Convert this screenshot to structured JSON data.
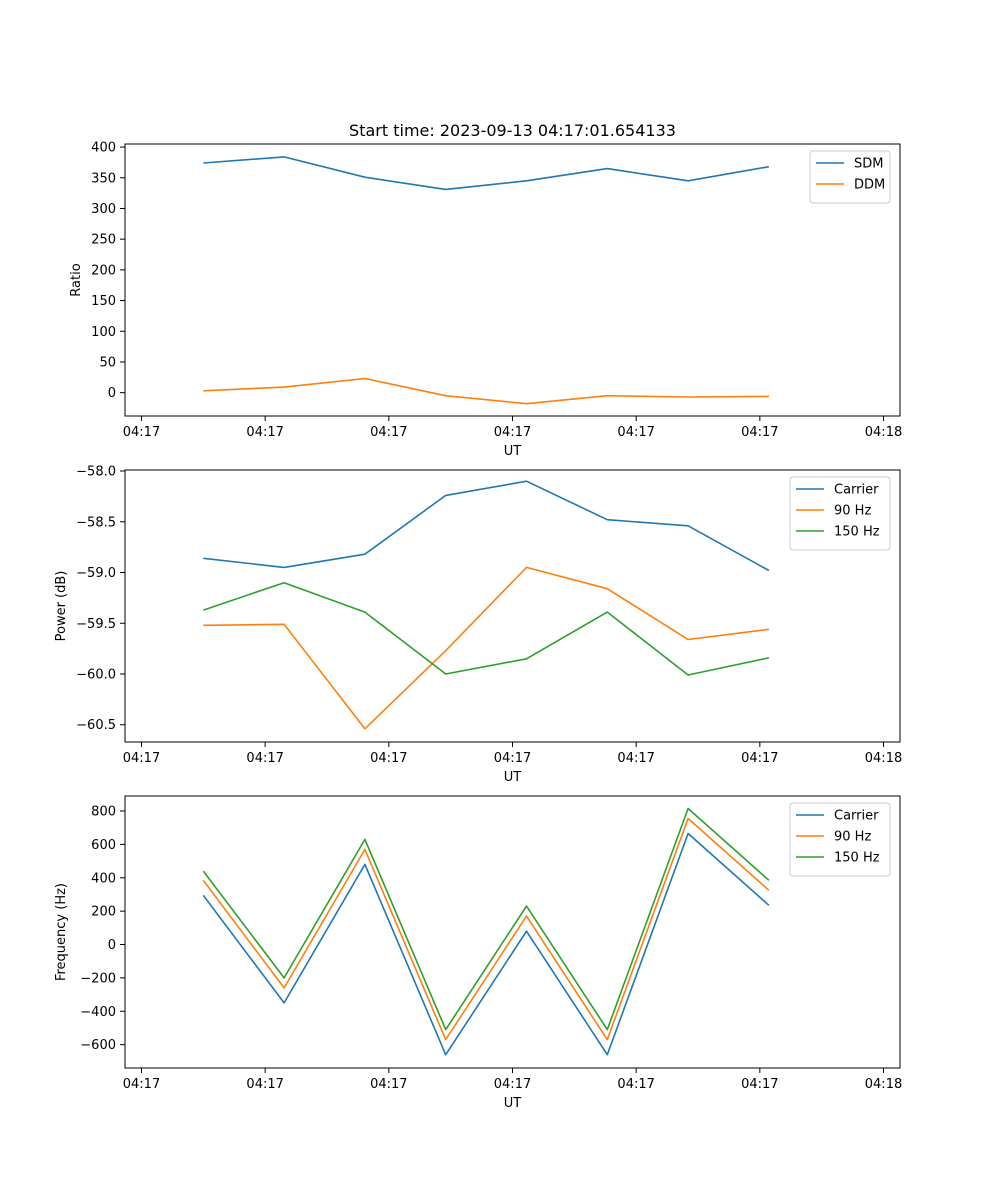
{
  "chart_data": [
    {
      "type": "line",
      "title": "Start time: 2023-09-13 04:17:01.654133",
      "xlabel": "UT",
      "ylabel": "Ratio",
      "xlim": [
        -0.2,
        9.2
      ],
      "ylim": [
        -38,
        405
      ],
      "x_tick_positions": [
        0,
        1.5,
        3,
        4.5,
        6,
        7.5,
        9
      ],
      "x_tick_labels": [
        "04:17",
        "04:17",
        "04:17",
        "04:17",
        "04:17",
        "04:17",
        "04:18"
      ],
      "y_ticks": [
        0,
        50,
        100,
        150,
        200,
        250,
        300,
        350,
        400
      ],
      "y_tick_labels": [
        "0",
        "50",
        "100",
        "150",
        "200",
        "250",
        "300",
        "350",
        "400"
      ],
      "legend": "top-right",
      "x": [
        0.75,
        1.73,
        2.71,
        3.69,
        4.67,
        5.65,
        6.63,
        7.61
      ],
      "series": [
        {
          "name": "SDM",
          "color": "#1f77b4",
          "values": [
            374,
            384,
            351,
            331,
            345,
            365,
            345,
            368
          ]
        },
        {
          "name": "DDM",
          "color": "#ff7f0e",
          "values": [
            3,
            9,
            23,
            -5,
            -18,
            -5,
            -7,
            -6
          ]
        }
      ]
    },
    {
      "type": "line",
      "title": "",
      "xlabel": "UT",
      "ylabel": "Power (dB)",
      "xlim": [
        -0.2,
        9.2
      ],
      "ylim": [
        -60.67,
        -57.99
      ],
      "x_tick_positions": [
        0,
        1.5,
        3,
        4.5,
        6,
        7.5,
        9
      ],
      "x_tick_labels": [
        "04:17",
        "04:17",
        "04:17",
        "04:17",
        "04:17",
        "04:17",
        "04:18"
      ],
      "y_ticks": [
        -60.5,
        -60.0,
        -59.5,
        -59.0,
        -58.5,
        -58.0
      ],
      "y_tick_labels": [
        "−60.5",
        "−60.0",
        "−59.5",
        "−59.0",
        "−58.5",
        "−58.0"
      ],
      "legend": "top-right",
      "x": [
        0.75,
        1.73,
        2.71,
        3.69,
        4.67,
        5.65,
        6.63,
        7.61
      ],
      "series": [
        {
          "name": "Carrier",
          "color": "#1f77b4",
          "values": [
            -58.86,
            -58.95,
            -58.82,
            -58.24,
            -58.1,
            -58.48,
            -58.54,
            -58.98
          ]
        },
        {
          "name": "90 Hz",
          "color": "#ff7f0e",
          "values": [
            -59.52,
            -59.51,
            -60.54,
            -59.77,
            -58.95,
            -59.16,
            -59.66,
            -59.56
          ]
        },
        {
          "name": "150 Hz",
          "color": "#2ca02c",
          "values": [
            -59.37,
            -59.1,
            -59.39,
            -60.0,
            -59.85,
            -59.39,
            -60.01,
            -59.84
          ]
        }
      ]
    },
    {
      "type": "line",
      "title": "",
      "xlabel": "UT",
      "ylabel": "Frequency (Hz)",
      "xlim": [
        -0.2,
        9.2
      ],
      "ylim": [
        -740,
        890
      ],
      "x_tick_positions": [
        0,
        1.5,
        3,
        4.5,
        6,
        7.5,
        9
      ],
      "x_tick_labels": [
        "04:17",
        "04:17",
        "04:17",
        "04:17",
        "04:17",
        "04:17",
        "04:18"
      ],
      "y_ticks": [
        -600,
        -400,
        -200,
        0,
        200,
        400,
        600,
        800
      ],
      "y_tick_labels": [
        "−600",
        "−400",
        "−200",
        "0",
        "200",
        "400",
        "600",
        "800"
      ],
      "legend": "top-right",
      "x": [
        0.75,
        1.73,
        2.71,
        3.69,
        4.67,
        5.65,
        6.63,
        7.61
      ],
      "series": [
        {
          "name": "Carrier",
          "color": "#1f77b4",
          "values": [
            295,
            -350,
            480,
            -660,
            80,
            -660,
            665,
            235
          ]
        },
        {
          "name": "90 Hz",
          "color": "#ff7f0e",
          "values": [
            385,
            -260,
            570,
            -570,
            170,
            -570,
            755,
            325
          ]
        },
        {
          "name": "150 Hz",
          "color": "#2ca02c",
          "values": [
            440,
            -200,
            630,
            -510,
            230,
            -510,
            815,
            385
          ]
        }
      ]
    }
  ]
}
